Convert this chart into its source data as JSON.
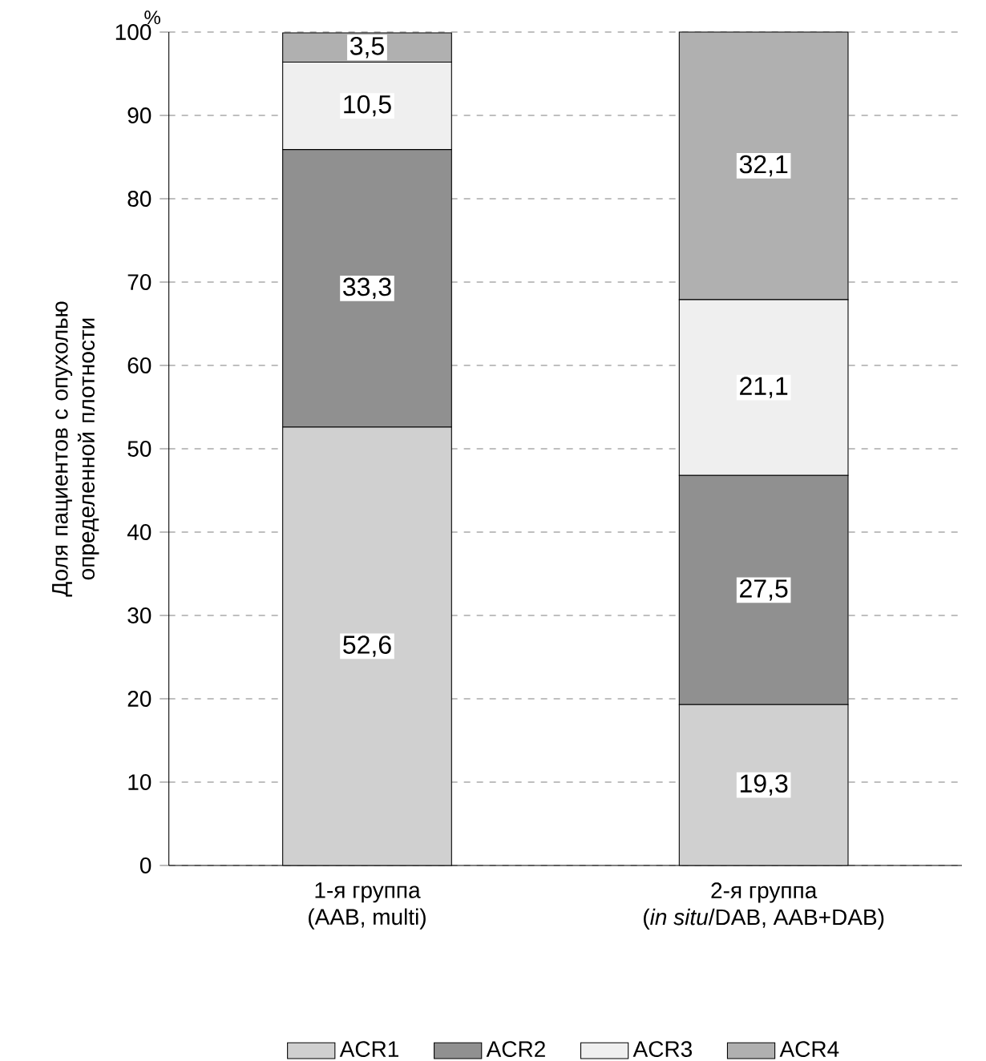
{
  "chart_data": {
    "type": "bar",
    "stacked": true,
    "ylabel": "Доля пациентов с опухолью определенной плотности",
    "annotations": [
      "%"
    ],
    "categories": [
      "1-я группа\n(AAB, multi)",
      "2-я группа\n(*in situ*/DAB, AAB+DAB)"
    ],
    "series": [
      {
        "name": "ACR1",
        "color": "#d0d0d0",
        "values": [
          52.6,
          19.3
        ],
        "value_labels": [
          "52,6",
          "19,3"
        ]
      },
      {
        "name": "ACR2",
        "color": "#909090",
        "values": [
          33.3,
          27.5
        ],
        "value_labels": [
          "33,3",
          "27,5"
        ]
      },
      {
        "name": "ACR3",
        "color": "#efefef",
        "values": [
          10.5,
          21.1
        ],
        "value_labels": [
          "10,5",
          "21,1"
        ]
      },
      {
        "name": "ACR4",
        "color": "#b0b0b0",
        "values": [
          3.5,
          32.1
        ],
        "value_labels": [
          "3,5",
          "32,1"
        ]
      }
    ],
    "ylim": [
      0,
      100
    ],
    "yticks": [
      0,
      10,
      20,
      30,
      40,
      50,
      60,
      70,
      80,
      90,
      100
    ],
    "grid": "y",
    "legend": "bottom"
  }
}
